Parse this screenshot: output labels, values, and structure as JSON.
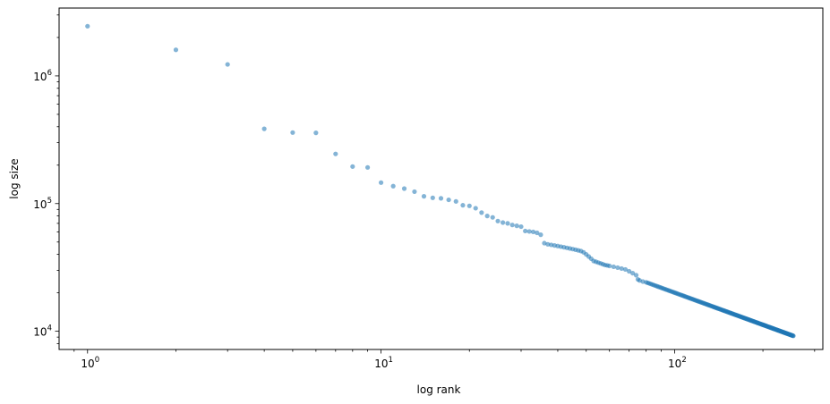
{
  "chart_data": {
    "type": "scatter",
    "xlabel": "log rank",
    "ylabel": "log size",
    "xscale": "log",
    "yscale": "log",
    "xlim": [
      0.8,
      320
    ],
    "ylim": [
      7200,
      3400000
    ],
    "grid": false,
    "legend": "none",
    "point_color": "#1f77b4",
    "point_alpha": 0.55,
    "xticks": [
      {
        "base": "10",
        "exp": "0",
        "value": 1
      },
      {
        "base": "10",
        "exp": "1",
        "value": 10
      },
      {
        "base": "10",
        "exp": "2",
        "value": 100
      }
    ],
    "yticks": [
      {
        "base": "10",
        "exp": "4",
        "value": 10000
      },
      {
        "base": "10",
        "exp": "5",
        "value": 100000
      },
      {
        "base": "10",
        "exp": "6",
        "value": 1000000
      }
    ],
    "head_points": [
      [
        1,
        2450000
      ],
      [
        2,
        1600000
      ],
      [
        3,
        1230000
      ],
      [
        4,
        385000
      ],
      [
        5,
        360000
      ],
      [
        6,
        358000
      ],
      [
        7,
        245000
      ],
      [
        8,
        195000
      ],
      [
        9,
        192000
      ],
      [
        10,
        146000
      ],
      [
        11,
        137000
      ],
      [
        12,
        131000
      ],
      [
        13,
        124000
      ],
      [
        14,
        114000
      ],
      [
        15,
        111000
      ],
      [
        16,
        110000
      ],
      [
        17,
        107000
      ],
      [
        18,
        104000
      ],
      [
        19,
        97000
      ],
      [
        20,
        96000
      ],
      [
        21,
        92000
      ],
      [
        22,
        85000
      ],
      [
        23,
        80000
      ],
      [
        24,
        78000
      ],
      [
        25,
        73000
      ],
      [
        26,
        71000
      ],
      [
        27,
        70000
      ],
      [
        28,
        68000
      ],
      [
        29,
        67000
      ],
      [
        30,
        66000
      ],
      [
        31,
        61000
      ],
      [
        32,
        60500
      ],
      [
        33,
        60000
      ],
      [
        34,
        59000
      ],
      [
        35,
        57000
      ],
      [
        36,
        49000
      ],
      [
        37,
        48000
      ],
      [
        38,
        47500
      ],
      [
        39,
        47000
      ],
      [
        40,
        46500
      ],
      [
        41,
        46000
      ],
      [
        42,
        45500
      ],
      [
        43,
        45000
      ],
      [
        44,
        44500
      ],
      [
        45,
        44000
      ],
      [
        46,
        43500
      ],
      [
        47,
        43000
      ],
      [
        48,
        42500
      ],
      [
        49,
        41500
      ],
      [
        50,
        40000
      ],
      [
        51,
        38500
      ],
      [
        52,
        37000
      ],
      [
        53,
        35500
      ],
      [
        54,
        35000
      ],
      [
        55,
        34500
      ],
      [
        56,
        34000
      ],
      [
        57,
        33500
      ],
      [
        58,
        33000
      ],
      [
        59,
        32800
      ],
      [
        60,
        32500
      ],
      [
        62,
        32000
      ],
      [
        64,
        31500
      ],
      [
        66,
        31000
      ],
      [
        68,
        30500
      ],
      [
        70,
        29500
      ],
      [
        72,
        28500
      ],
      [
        74,
        27500
      ],
      [
        75,
        25500
      ],
      [
        76,
        25000
      ],
      [
        78,
        24500
      ],
      [
        80,
        24200
      ]
    ],
    "tail_points": {
      "from_rank": 80,
      "to_rank": 254,
      "from_size": 24200,
      "to_size": 9200
    }
  }
}
